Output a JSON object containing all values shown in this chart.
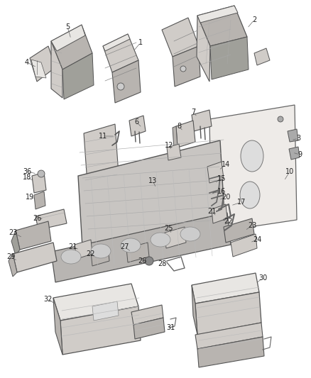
{
  "bg_color": "#ffffff",
  "fig_width": 4.38,
  "fig_height": 5.33,
  "dpi": 100,
  "lc": "#555555",
  "fc_light": "#e8e6e3",
  "fc_mid": "#d0ccc8",
  "fc_dark": "#b8b4b0",
  "fc_darker": "#a0a09a",
  "label_fs": 7,
  "label_color": "#222222",
  "line_color": "#444444"
}
